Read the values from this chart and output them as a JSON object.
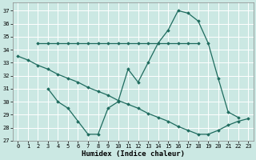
{
  "xlabel": "Humidex (Indice chaleur)",
  "bg_color": "#cbe8e3",
  "line_color": "#1e6b5e",
  "grid_color": "#ffffff",
  "xlim": [
    -0.5,
    23.5
  ],
  "ylim": [
    27,
    37.6
  ],
  "yticks": [
    27,
    28,
    29,
    30,
    31,
    32,
    33,
    34,
    35,
    36,
    37
  ],
  "xticks": [
    0,
    1,
    2,
    3,
    4,
    5,
    6,
    7,
    8,
    9,
    10,
    11,
    12,
    13,
    14,
    15,
    16,
    17,
    18,
    19,
    20,
    21,
    22,
    23
  ],
  "lines": [
    {
      "x": [
        0,
        1,
        2,
        3,
        4,
        5,
        6,
        7,
        8,
        9,
        10,
        11,
        12,
        13,
        14,
        15,
        16,
        17,
        18,
        19,
        20,
        21,
        22,
        23
      ],
      "y": [
        33.5,
        33.2,
        32.8,
        32.5,
        32.1,
        31.8,
        31.5,
        31.1,
        30.8,
        30.5,
        30.1,
        29.8,
        29.5,
        29.1,
        28.8,
        28.5,
        28.1,
        27.8,
        27.5,
        27.5,
        27.8,
        28.2,
        28.5,
        28.7
      ]
    },
    {
      "x": [
        2,
        3,
        4,
        5,
        6,
        7,
        8,
        9,
        10,
        11,
        12,
        13,
        14,
        15,
        16,
        17,
        18
      ],
      "y": [
        34.5,
        34.5,
        34.5,
        34.5,
        34.5,
        34.5,
        34.5,
        34.5,
        34.5,
        34.5,
        34.5,
        34.5,
        34.5,
        34.5,
        34.5,
        34.5,
        34.5
      ]
    },
    {
      "x": [
        3,
        4,
        5,
        6,
        7,
        8,
        9,
        10,
        11,
        12,
        13,
        14,
        15,
        16,
        17,
        18,
        19,
        20,
        21,
        22
      ],
      "y": [
        31.0,
        30.0,
        29.5,
        28.5,
        27.5,
        27.5,
        29.5,
        30.0,
        32.5,
        31.5,
        33.0,
        34.5,
        35.5,
        37.0,
        36.8,
        36.2,
        34.5,
        31.8,
        29.2,
        28.8
      ]
    }
  ]
}
